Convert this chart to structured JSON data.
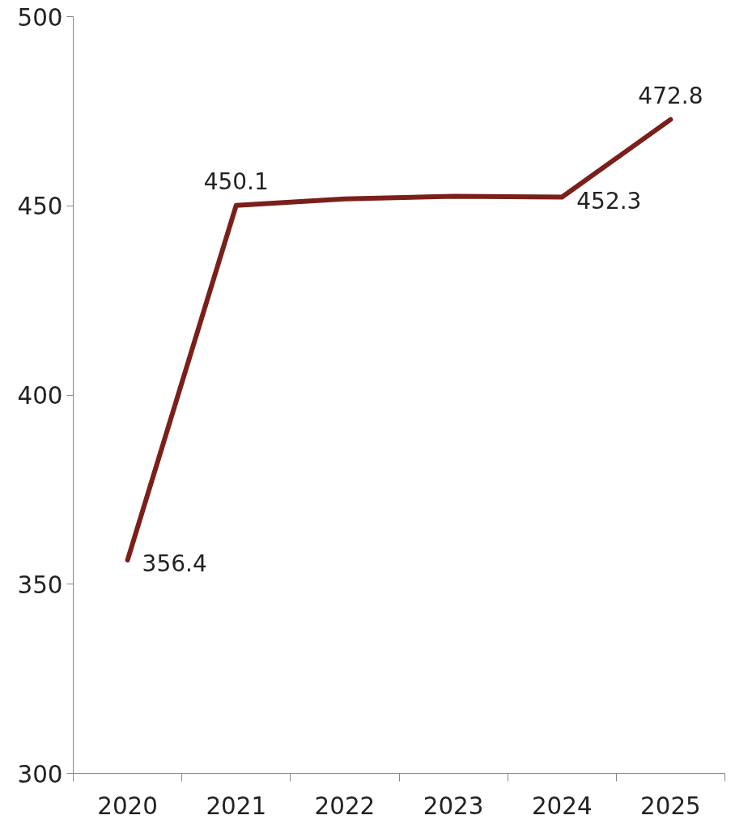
{
  "chart_data": {
    "type": "line",
    "categories": [
      "2020",
      "2021",
      "2022",
      "2023",
      "2024",
      "2025"
    ],
    "series": [
      {
        "color": "#7b1f1a",
        "values": [
          356.4,
          450.1,
          451.8,
          452.5,
          452.3,
          472.8
        ],
        "value_labels": [
          "356.4",
          "450.1",
          null,
          null,
          "452.3",
          "472.8"
        ]
      }
    ],
    "ylim": [
      300,
      500
    ],
    "yticks": [
      300,
      350,
      400,
      450,
      500
    ],
    "grid": false,
    "marker": "none",
    "line_style": "solid"
  }
}
